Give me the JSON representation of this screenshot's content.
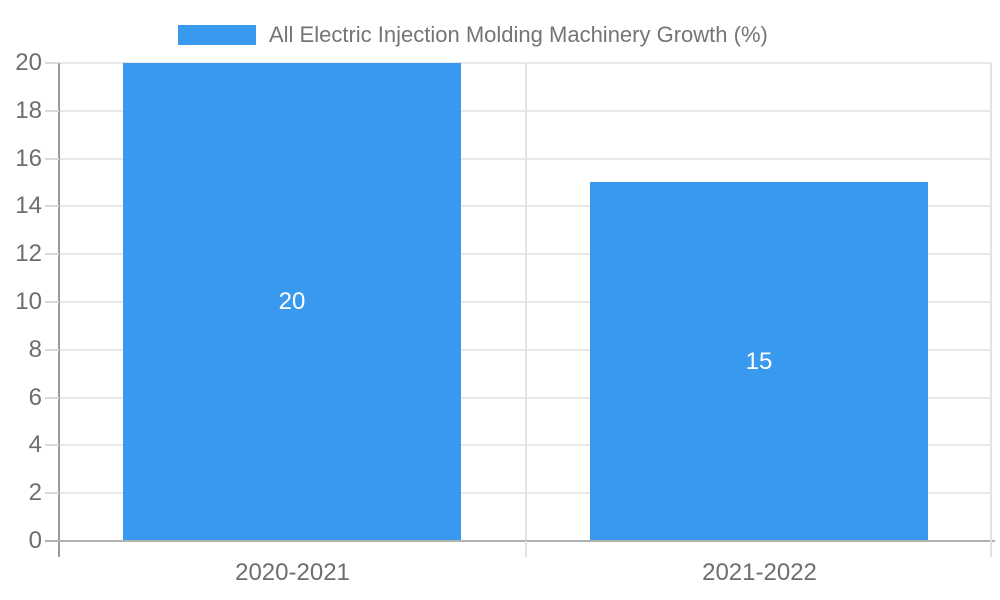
{
  "chart_data": {
    "type": "bar",
    "legend": "All Electric Injection Molding Machinery Growth (%)",
    "legend_position": "top",
    "categories": [
      "2020-2021",
      "2021-2022"
    ],
    "values": [
      20,
      15
    ],
    "value_labels": [
      "20",
      "15"
    ],
    "xlabel": "",
    "ylabel": "",
    "ylim": [
      0,
      20
    ],
    "ytick_step": 2,
    "ytick_labels": [
      "0",
      "2",
      "4",
      "6",
      "8",
      "10",
      "12",
      "14",
      "16",
      "18",
      "20"
    ],
    "grid": true,
    "colors": {
      "bar": "#3999EE",
      "value_label": "#ffffff",
      "axis_label": "#6e6e6e",
      "legend_text": "#757575",
      "gridline": "#e9e9e9",
      "axis_line": "#9a9a9a",
      "baseline": "#b0b0b0",
      "divider": "#e2e2e2",
      "tick": "#d9d9d9"
    }
  }
}
